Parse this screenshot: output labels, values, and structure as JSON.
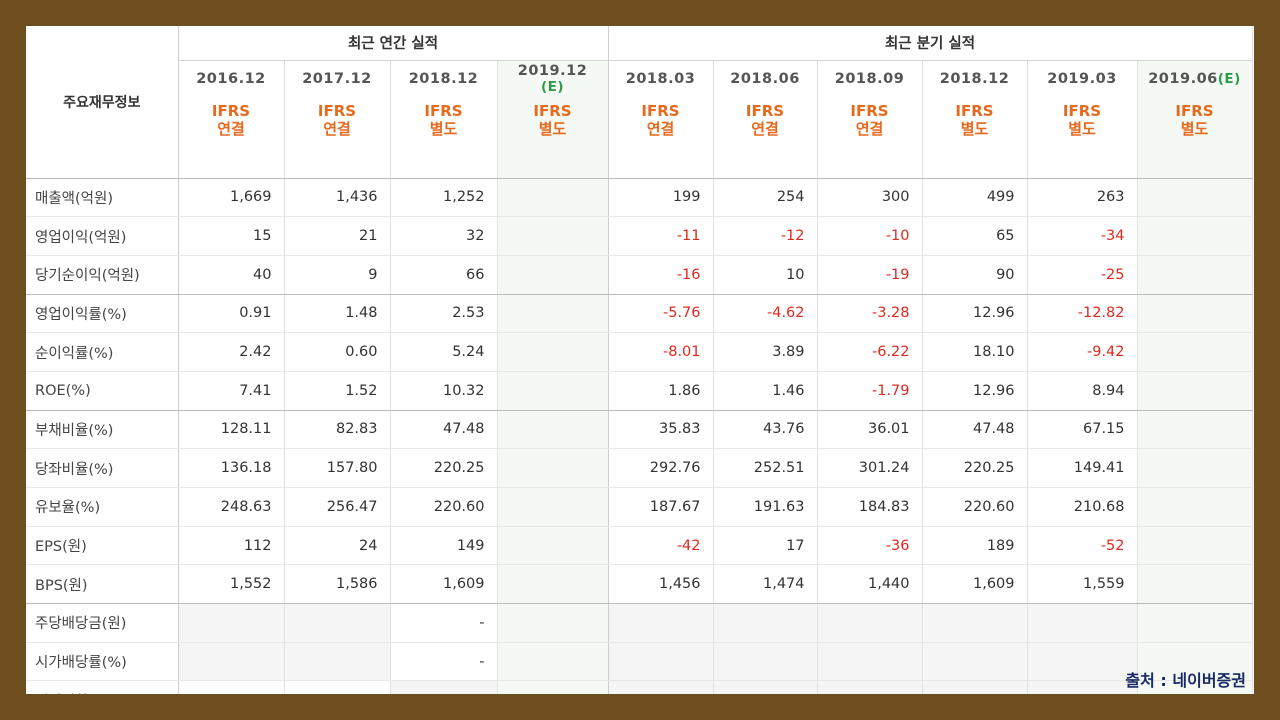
{
  "header": {
    "corner_label": "주요재무정보",
    "annual_title": "최근 연간 실적",
    "quarter_title": "최근 분기 실적",
    "annual_periods": [
      {
        "label": "2016.12",
        "est": ""
      },
      {
        "label": "2017.12",
        "est": ""
      },
      {
        "label": "2018.12",
        "est": ""
      },
      {
        "label": "2019.12",
        "est": "(E)"
      }
    ],
    "quarter_periods": [
      {
        "label": "2018.03",
        "est": ""
      },
      {
        "label": "2018.06",
        "est": ""
      },
      {
        "label": "2018.09",
        "est": ""
      },
      {
        "label": "2018.12",
        "est": ""
      },
      {
        "label": "2019.03",
        "est": ""
      },
      {
        "label": "2019.06",
        "est": "(E)"
      }
    ],
    "annual_standards": [
      {
        "a": "IFRS",
        "b": "연결"
      },
      {
        "a": "IFRS",
        "b": "연결"
      },
      {
        "a": "IFRS",
        "b": "별도"
      },
      {
        "a": "IFRS",
        "b": "별도"
      }
    ],
    "quarter_standards": [
      {
        "a": "IFRS",
        "b": "연결"
      },
      {
        "a": "IFRS",
        "b": "연결"
      },
      {
        "a": "IFRS",
        "b": "연결"
      },
      {
        "a": "IFRS",
        "b": "별도"
      },
      {
        "a": "IFRS",
        "b": "별도"
      },
      {
        "a": "IFRS",
        "b": "별도"
      }
    ]
  },
  "rows": [
    {
      "label": "매출액(억원)",
      "annual": [
        "1,669",
        "1,436",
        "1,252",
        ""
      ],
      "quarter": [
        "199",
        "254",
        "300",
        "499",
        "263",
        ""
      ]
    },
    {
      "label": "영업이익(억원)",
      "annual": [
        "15",
        "21",
        "32",
        ""
      ],
      "quarter": [
        "-11",
        "-12",
        "-10",
        "65",
        "-34",
        ""
      ]
    },
    {
      "label": "당기순이익(억원)",
      "annual": [
        "40",
        "9",
        "66",
        ""
      ],
      "quarter": [
        "-16",
        "10",
        "-19",
        "90",
        "-25",
        ""
      ]
    },
    {
      "label": "영업이익률(%)",
      "annual": [
        "0.91",
        "1.48",
        "2.53",
        ""
      ],
      "quarter": [
        "-5.76",
        "-4.62",
        "-3.28",
        "12.96",
        "-12.82",
        ""
      ]
    },
    {
      "label": "순이익률(%)",
      "annual": [
        "2.42",
        "0.60",
        "5.24",
        ""
      ],
      "quarter": [
        "-8.01",
        "3.89",
        "-6.22",
        "18.10",
        "-9.42",
        ""
      ]
    },
    {
      "label": "ROE(%)",
      "annual": [
        "7.41",
        "1.52",
        "10.32",
        ""
      ],
      "quarter": [
        "1.86",
        "1.46",
        "-1.79",
        "12.96",
        "8.94",
        ""
      ]
    },
    {
      "label": "부채비율(%)",
      "annual": [
        "128.11",
        "82.83",
        "47.48",
        ""
      ],
      "quarter": [
        "35.83",
        "43.76",
        "36.01",
        "47.48",
        "67.15",
        ""
      ]
    },
    {
      "label": "당좌비율(%)",
      "annual": [
        "136.18",
        "157.80",
        "220.25",
        ""
      ],
      "quarter": [
        "292.76",
        "252.51",
        "301.24",
        "220.25",
        "149.41",
        ""
      ]
    },
    {
      "label": "유보율(%)",
      "annual": [
        "248.63",
        "256.47",
        "220.60",
        ""
      ],
      "quarter": [
        "187.67",
        "191.63",
        "184.83",
        "220.60",
        "210.68",
        ""
      ]
    },
    {
      "label": "EPS(원)",
      "annual": [
        "112",
        "24",
        "149",
        ""
      ],
      "quarter": [
        "-42",
        "17",
        "-36",
        "189",
        "-52",
        ""
      ]
    },
    {
      "label": "BPS(원)",
      "annual": [
        "1,552",
        "1,586",
        "1,609",
        ""
      ],
      "quarter": [
        "1,456",
        "1,474",
        "1,440",
        "1,609",
        "1,559",
        ""
      ]
    },
    {
      "label": "주당배당금(원)",
      "annual": [
        "",
        "",
        "-",
        ""
      ],
      "quarter": [
        "",
        "",
        "",
        "",
        "",
        ""
      ]
    },
    {
      "label": "시가배당률(%)",
      "annual": [
        "",
        "",
        "-",
        ""
      ],
      "quarter": [
        "",
        "",
        "",
        "",
        "",
        ""
      ]
    },
    {
      "label": "배당성향(%)",
      "annual": [
        "-",
        "-",
        "",
        ""
      ],
      "quarter": [
        "",
        "",
        "",
        "",
        "",
        ""
      ]
    }
  ],
  "source_label": "출처 : 네이버증권",
  "colors": {
    "frame": "#6e4e1f",
    "standard_text": "#e56a1e",
    "negative": "#e0291e",
    "estimate": "#2f9a4a",
    "source_text": "#1a2a66"
  }
}
